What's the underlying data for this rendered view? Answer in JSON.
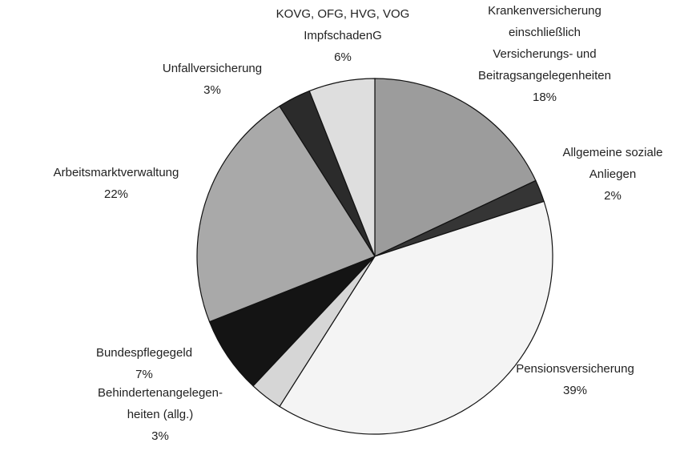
{
  "chart_data": {
    "type": "pie",
    "categories": [
      "Krankenversicherung\neinschließlich\nVersicherungs- und\nBeitragsangelegenheiten",
      "Allgemeine soziale\nAnliegen",
      "Pensionsversicherung",
      "Behindertenangelegen-\nheiten (allg.)",
      "Bundespflegegeld",
      "Arbeitsmarktverwaltung",
      "Unfallversicherung",
      "KOVG, OFG, HVG, VOG\nImpfschadenG"
    ],
    "values": [
      18,
      2,
      39,
      3,
      7,
      22,
      3,
      6
    ],
    "value_labels": [
      "18%",
      "2%",
      "39%",
      "3%",
      "7%",
      "22%",
      "3%",
      "6%"
    ],
    "colors": [
      "#9c9c9c",
      "#353535",
      "#f4f4f4",
      "#d6d6d6",
      "#141414",
      "#a9a9a9",
      "#2b2b2b",
      "#dedede"
    ]
  }
}
